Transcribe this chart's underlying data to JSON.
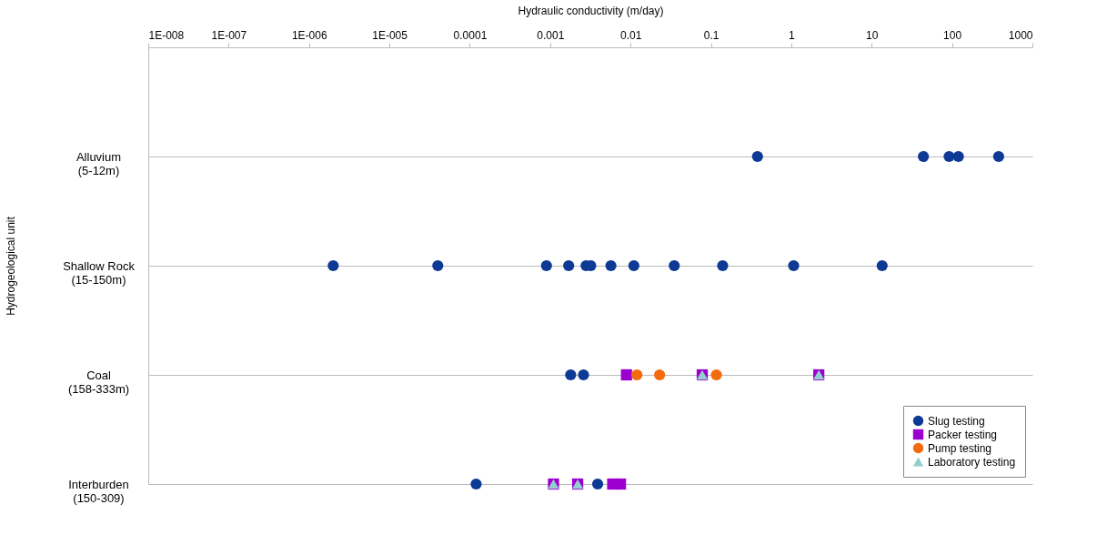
{
  "chart_data": {
    "type": "scatter",
    "orientation": "horizontal",
    "xlabel": "Hydraulic conductivity (m/day)",
    "ylabel": "Hydrogeological unit",
    "categories": [
      "Alluvium\n(5-12m)",
      "Shallow Rock\n(15-150m)",
      "Coal\n(158-333m)",
      "Interburden\n(150-309)"
    ],
    "log": "x",
    "xlim": [
      1e-08,
      1000
    ],
    "xticks": [
      {
        "value": 1e-08,
        "label": "1E-008"
      },
      {
        "value": 1e-07,
        "label": "1E-007"
      },
      {
        "value": 1e-06,
        "label": "1E-006"
      },
      {
        "value": 1e-05,
        "label": "1E-005"
      },
      0.0001,
      0.001,
      0.01,
      0.1,
      1,
      10,
      100,
      1000
    ],
    "grid": "y",
    "legend": "bottom right",
    "series": [
      {
        "name": "Slug testing",
        "color": "#0d3a94",
        "marker": "circle",
        "values": [
          0.38,
          2e-06,
          0.0018,
          0.00012
        ]
      },
      {
        "color": "#0d3a94",
        "marker": "circle",
        "values": [
          44,
          4e-05,
          0.0026,
          0.0039
        ]
      },
      {
        "color": "#0d3a94",
        "marker": "circle",
        "values": [
          92,
          0.0009,
          null,
          null
        ]
      },
      {
        "color": "#0d3a94",
        "marker": "circle",
        "values": [
          120,
          0.0017,
          null,
          null
        ]
      },
      {
        "color": "#0d3a94",
        "marker": "circle",
        "values": [
          380,
          0.0028,
          null,
          null
        ]
      },
      {
        "color": "#0d3a94",
        "marker": "circle",
        "values": [
          null,
          0.0032,
          null,
          null
        ]
      },
      {
        "color": "#0d3a94",
        "marker": "circle",
        "values": [
          null,
          0.0057,
          null,
          null
        ]
      },
      {
        "color": "#0d3a94",
        "marker": "circle",
        "values": [
          null,
          0.011,
          null,
          null
        ]
      },
      {
        "color": "#0d3a94",
        "marker": "circle",
        "values": [
          null,
          0.035,
          null,
          null
        ]
      },
      {
        "color": "#0d3a94",
        "marker": "circle",
        "values": [
          null,
          0.14,
          null,
          null
        ]
      },
      {
        "color": "#0d3a94",
        "marker": "circle",
        "values": [
          null,
          1.07,
          null,
          null
        ]
      },
      {
        "color": "#0d3a94",
        "marker": "circle",
        "values": [
          null,
          13.5,
          null,
          null
        ]
      },
      {
        "name": "Packer testing",
        "color": "#9b00d0",
        "marker": "square",
        "values": [
          null,
          null,
          0.0089,
          0.0011
        ]
      },
      {
        "color": "#9b00d0",
        "marker": "square",
        "values": [
          null,
          null,
          0.078,
          0.0022
        ]
      },
      {
        "color": "#9b00d0",
        "marker": "square",
        "values": [
          null,
          null,
          2.2,
          0.006
        ]
      },
      {
        "color": "#9b00d0",
        "marker": "square",
        "values": [
          null,
          null,
          null,
          0.0075
        ]
      },
      {
        "name": "Pump testing",
        "color": "#f26b0e",
        "marker": "circle",
        "values": [
          null,
          null,
          0.012,
          null
        ]
      },
      {
        "color": "#f26b0e",
        "marker": "circle",
        "values": [
          null,
          null,
          0.023,
          null
        ]
      },
      {
        "color": "#f26b0e",
        "marker": "circle",
        "values": [
          null,
          null,
          0.117,
          null
        ]
      },
      {
        "name": "Laboratory testing",
        "color": "#93cfcf",
        "marker": "triangle",
        "values": [
          null,
          null,
          0.078,
          0.0011
        ]
      },
      {
        "color": "#93cfcf",
        "marker": "triangle",
        "values": [
          null,
          null,
          2.2,
          0.0022
        ]
      }
    ]
  }
}
